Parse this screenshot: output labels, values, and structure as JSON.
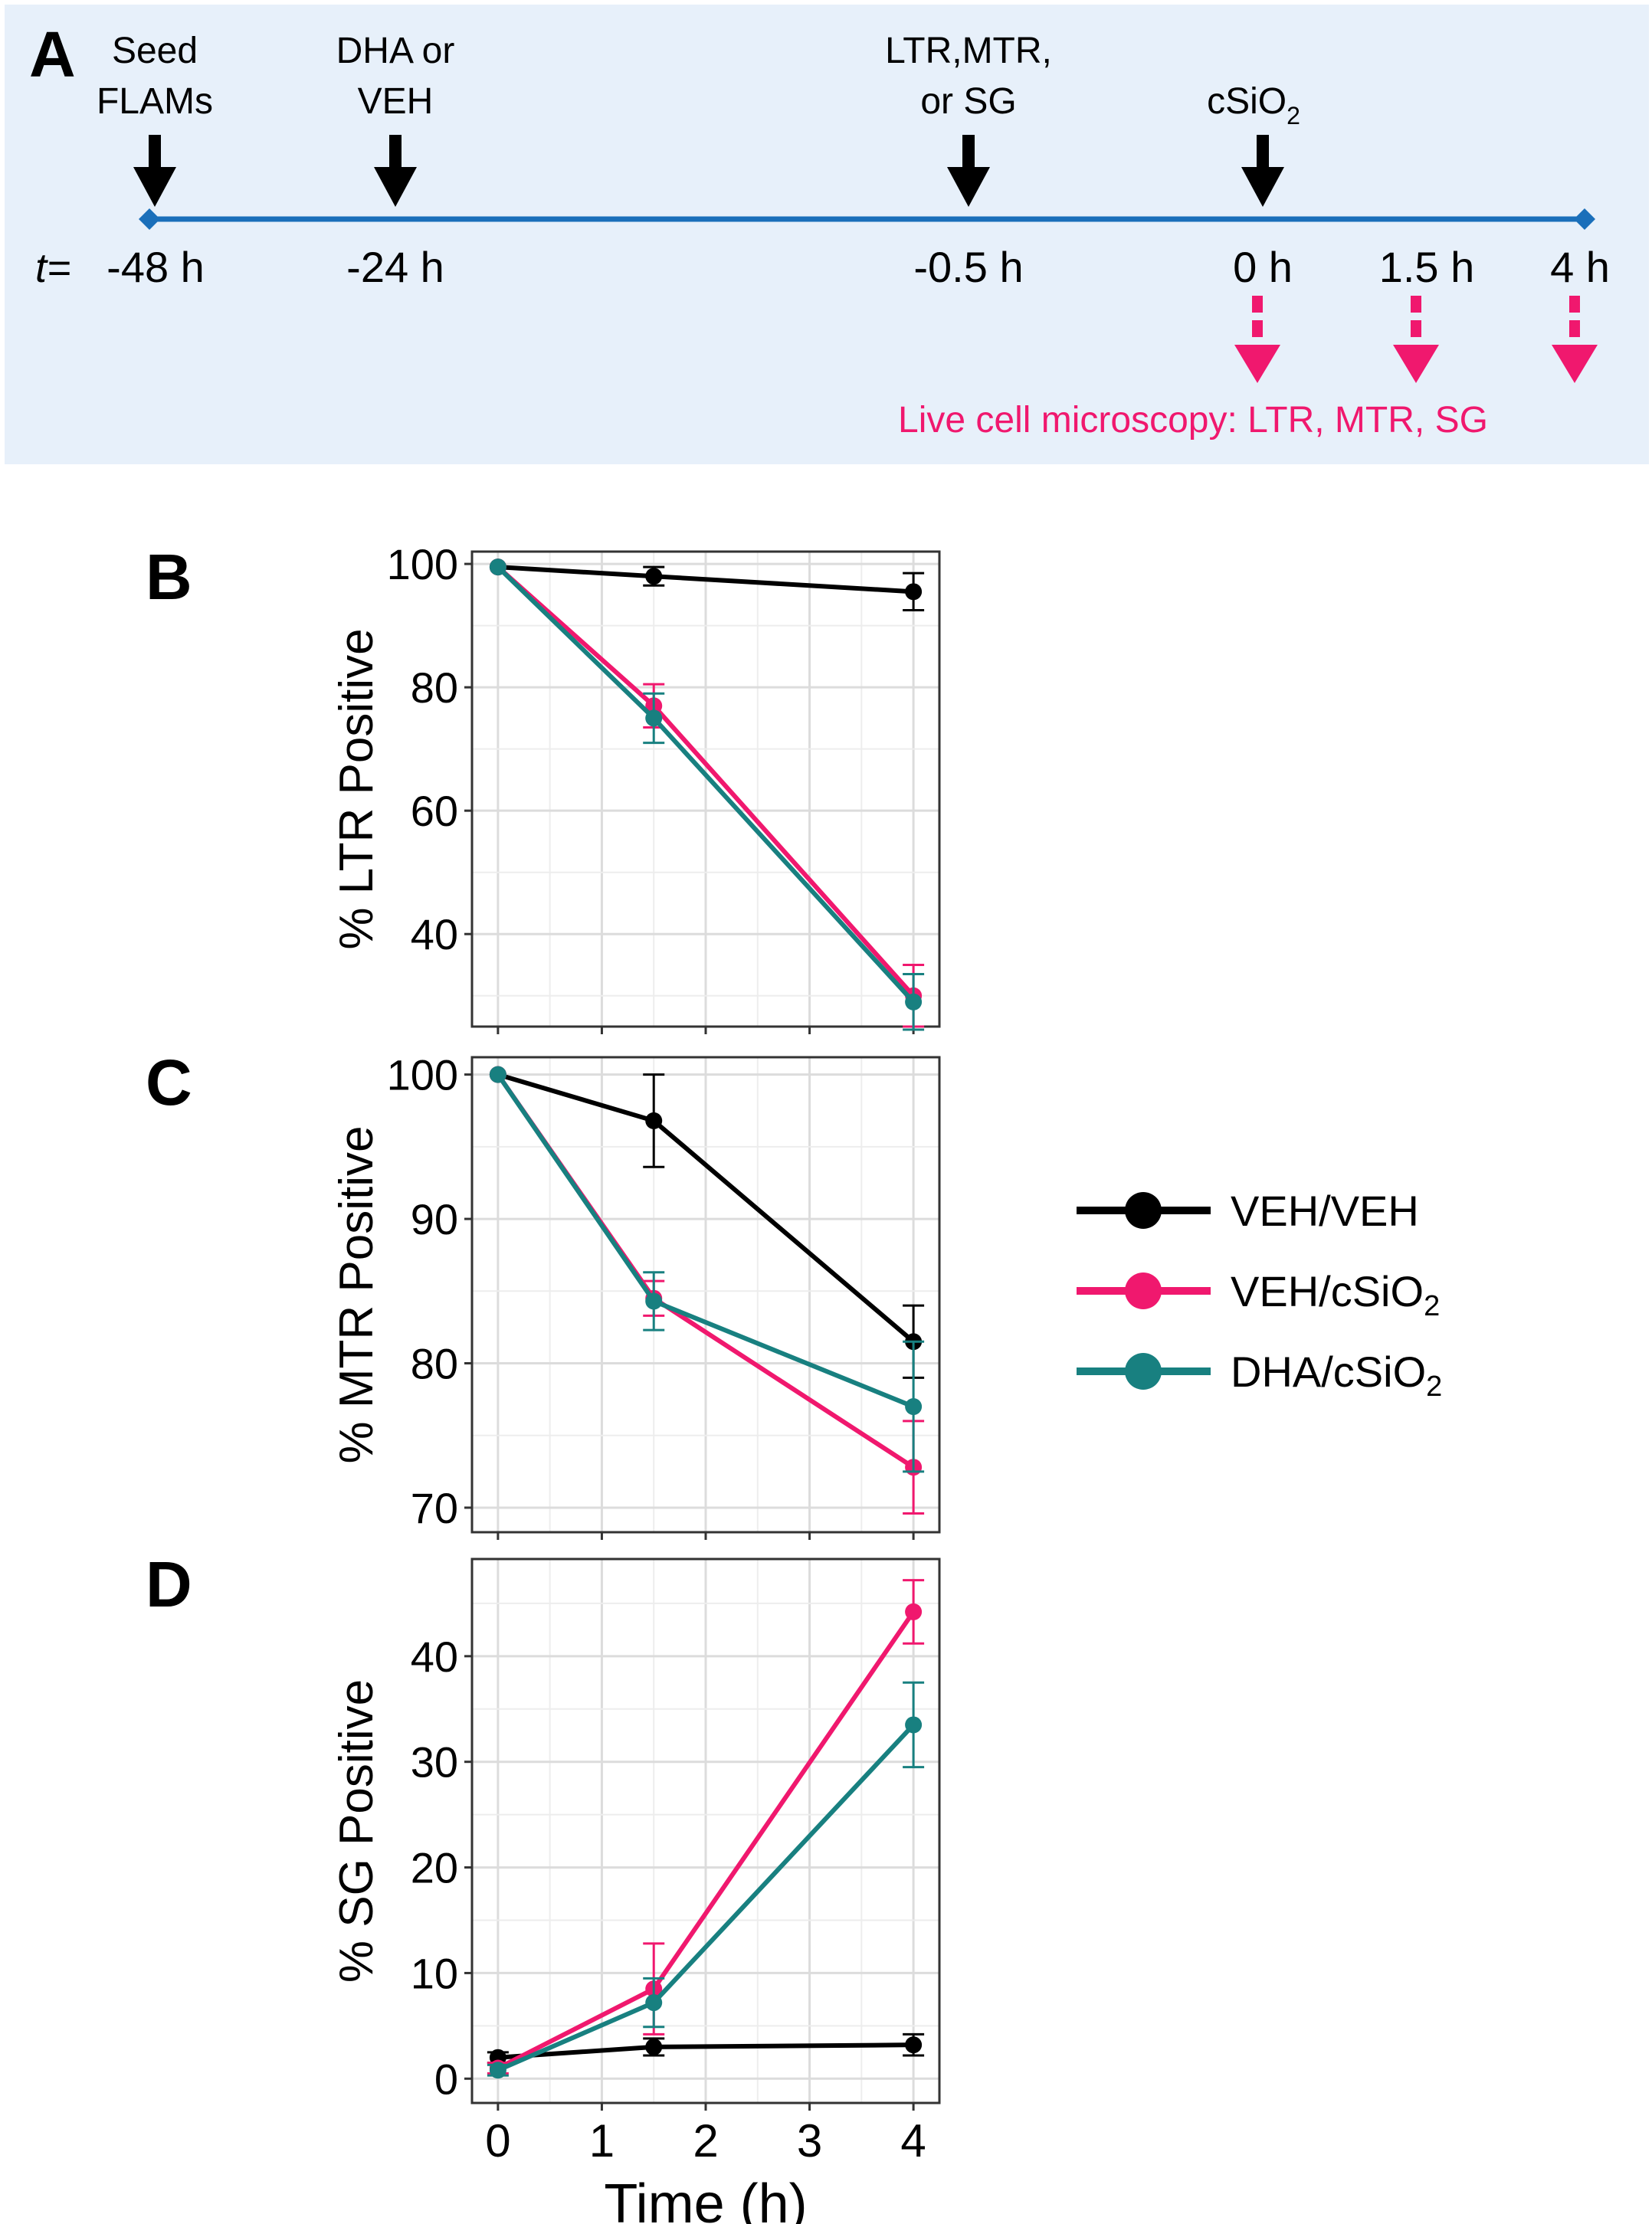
{
  "colors": {
    "veh_veh": "#000000",
    "veh_csio2": "#f0186e",
    "dha_csio2": "#188080",
    "timeline": "#1a6fba",
    "highlight": "#f0186e",
    "panel_bg": "#e7f0fa"
  },
  "timeline": {
    "panel_label": "A",
    "t_prefix": "t=",
    "events": [
      {
        "lines": [
          "Seed",
          "FLAMs"
        ],
        "time_label": "-48 h"
      },
      {
        "lines": [
          "DHA or",
          "VEH"
        ],
        "time_label": "-24 h"
      },
      {
        "lines": [
          "LTR,MTR,",
          "or SG"
        ],
        "time_label": "-0.5 h"
      },
      {
        "lines": [
          "cSiO"
        ],
        "subscript": "2",
        "time_label": "0 h"
      },
      {
        "lines": [],
        "time_label": "1.5 h"
      },
      {
        "lines": [],
        "time_label": "4 h"
      }
    ],
    "microscopy_label": "Live cell microscopy: LTR, MTR, SG"
  },
  "legend": {
    "entries": [
      {
        "key": "veh_veh",
        "label": "VEH/VEH",
        "subscript": ""
      },
      {
        "key": "veh_csio2",
        "label": "VEH/cSiO",
        "subscript": "2"
      },
      {
        "key": "dha_csio2",
        "label": "DHA/cSiO",
        "subscript": "2"
      }
    ]
  },
  "chart_data": [
    {
      "type": "line",
      "panel_label": "B",
      "title": "",
      "xlabel": "",
      "ylabel": "% LTR Positive",
      "x": [
        0,
        1.5,
        4
      ],
      "xlim": [
        -0.25,
        4.25
      ],
      "ylim": [
        25,
        102
      ],
      "yticks": [
        40,
        60,
        80,
        100
      ],
      "grid": true,
      "show_x_ticklabels": false,
      "series": [
        {
          "key": "veh_veh",
          "name": "VEH/VEH",
          "values": [
            99.5,
            98,
            95.5
          ],
          "errors": [
            0,
            1.5,
            3
          ]
        },
        {
          "key": "veh_csio2",
          "name": "VEH/cSiO2",
          "values": [
            99.5,
            77,
            30
          ],
          "errors": [
            0,
            3.5,
            5
          ]
        },
        {
          "key": "dha_csio2",
          "name": "DHA/cSiO2",
          "values": [
            99.5,
            75,
            29
          ],
          "errors": [
            0,
            4,
            4.5
          ]
        }
      ]
    },
    {
      "type": "line",
      "panel_label": "C",
      "title": "",
      "xlabel": "",
      "ylabel": "% MTR Positive",
      "x": [
        0,
        1.5,
        4
      ],
      "xlim": [
        -0.25,
        4.25
      ],
      "ylim": [
        68.3,
        101.2
      ],
      "yticks": [
        70,
        80,
        90,
        100
      ],
      "grid": true,
      "show_x_ticklabels": false,
      "series": [
        {
          "key": "veh_veh",
          "name": "VEH/VEH",
          "values": [
            100,
            96.8,
            81.5
          ],
          "errors": [
            0,
            3.2,
            2.5
          ]
        },
        {
          "key": "veh_csio2",
          "name": "VEH/cSiO2",
          "values": [
            100,
            84.5,
            72.8
          ],
          "errors": [
            0,
            1.2,
            3.2
          ]
        },
        {
          "key": "dha_csio2",
          "name": "DHA/cSiO2",
          "values": [
            100,
            84.3,
            77
          ],
          "errors": [
            0,
            2,
            4.5
          ]
        }
      ]
    },
    {
      "type": "line",
      "panel_label": "D",
      "title": "",
      "xlabel": "Time (h)",
      "ylabel": "% SG Positive",
      "x": [
        0,
        1.5,
        4
      ],
      "xlim": [
        -0.25,
        4.25
      ],
      "ylim": [
        -2.3,
        49.2
      ],
      "yticks": [
        0,
        10,
        20,
        30,
        40
      ],
      "xticks": [
        0,
        1,
        2,
        3,
        4
      ],
      "grid": true,
      "show_x_ticklabels": true,
      "series": [
        {
          "key": "veh_veh",
          "name": "VEH/VEH",
          "values": [
            2,
            3,
            3.2
          ],
          "errors": [
            0.5,
            0.8,
            1
          ]
        },
        {
          "key": "veh_csio2",
          "name": "VEH/cSiO2",
          "values": [
            1,
            8.5,
            44.2
          ],
          "errors": [
            0.5,
            4.3,
            3
          ]
        },
        {
          "key": "dha_csio2",
          "name": "DHA/cSiO2",
          "values": [
            0.8,
            7.2,
            33.5
          ],
          "errors": [
            0.5,
            2.3,
            4
          ]
        }
      ]
    }
  ]
}
